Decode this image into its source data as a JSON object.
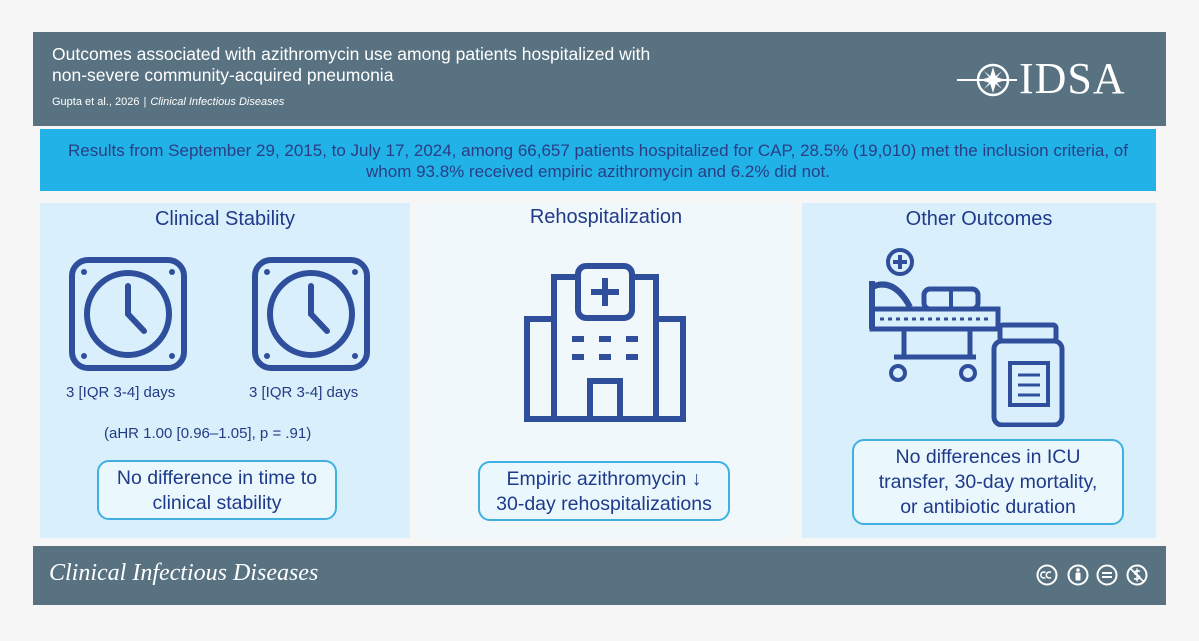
{
  "header": {
    "title_line1": "Outcomes associated with azithromycin use among patients hospitalized with",
    "title_line2": "non-severe community-acquired pneumonia",
    "citation_authors": "Gupta et al., 2026",
    "citation_separator": "|",
    "citation_journal": "Clinical Infectious Diseases",
    "logo_text": "IDSA"
  },
  "banner": {
    "line1": "Results from September 29, 2015, to July 17, 2024, among 66,657 patients hospitalized for CAP, 28.5% (19,010) met the inclusion criteria, of",
    "line2": "whom 93.8% received empiric azithromycin and 6.2% did not."
  },
  "clinical_stability": {
    "title": "Clinical Stability",
    "left_days": "3 [IQR 3-4] days",
    "right_days": "3 [IQR 3-4] days",
    "stat": "(aHR 1.00 [0.96–1.05], p = .91)",
    "box_line1": "No difference in time to",
    "box_line2": "clinical stability"
  },
  "rehospitalization": {
    "title": "Rehospitalization",
    "box_line1": "Empiric azithromycin ↓",
    "box_line2": "30-day rehospitalizations"
  },
  "other_outcomes": {
    "title": "Other Outcomes",
    "box_line1": "No differences in ICU",
    "box_line2": "transfer, 30-day mortality,",
    "box_line3": "or antibiotic duration"
  },
  "footer": {
    "journal": "Clinical Infectious Diseases",
    "license_icons": [
      "cc-icon",
      "by-icon",
      "nd-icon",
      "nc-icon"
    ]
  },
  "colors": {
    "header_bg": "#587281",
    "banner_bg": "#21b3e8",
    "text_blue": "#1f3a8a",
    "icon_blue": "#2f4f9c",
    "accent_border": "#3fb0e0"
  }
}
